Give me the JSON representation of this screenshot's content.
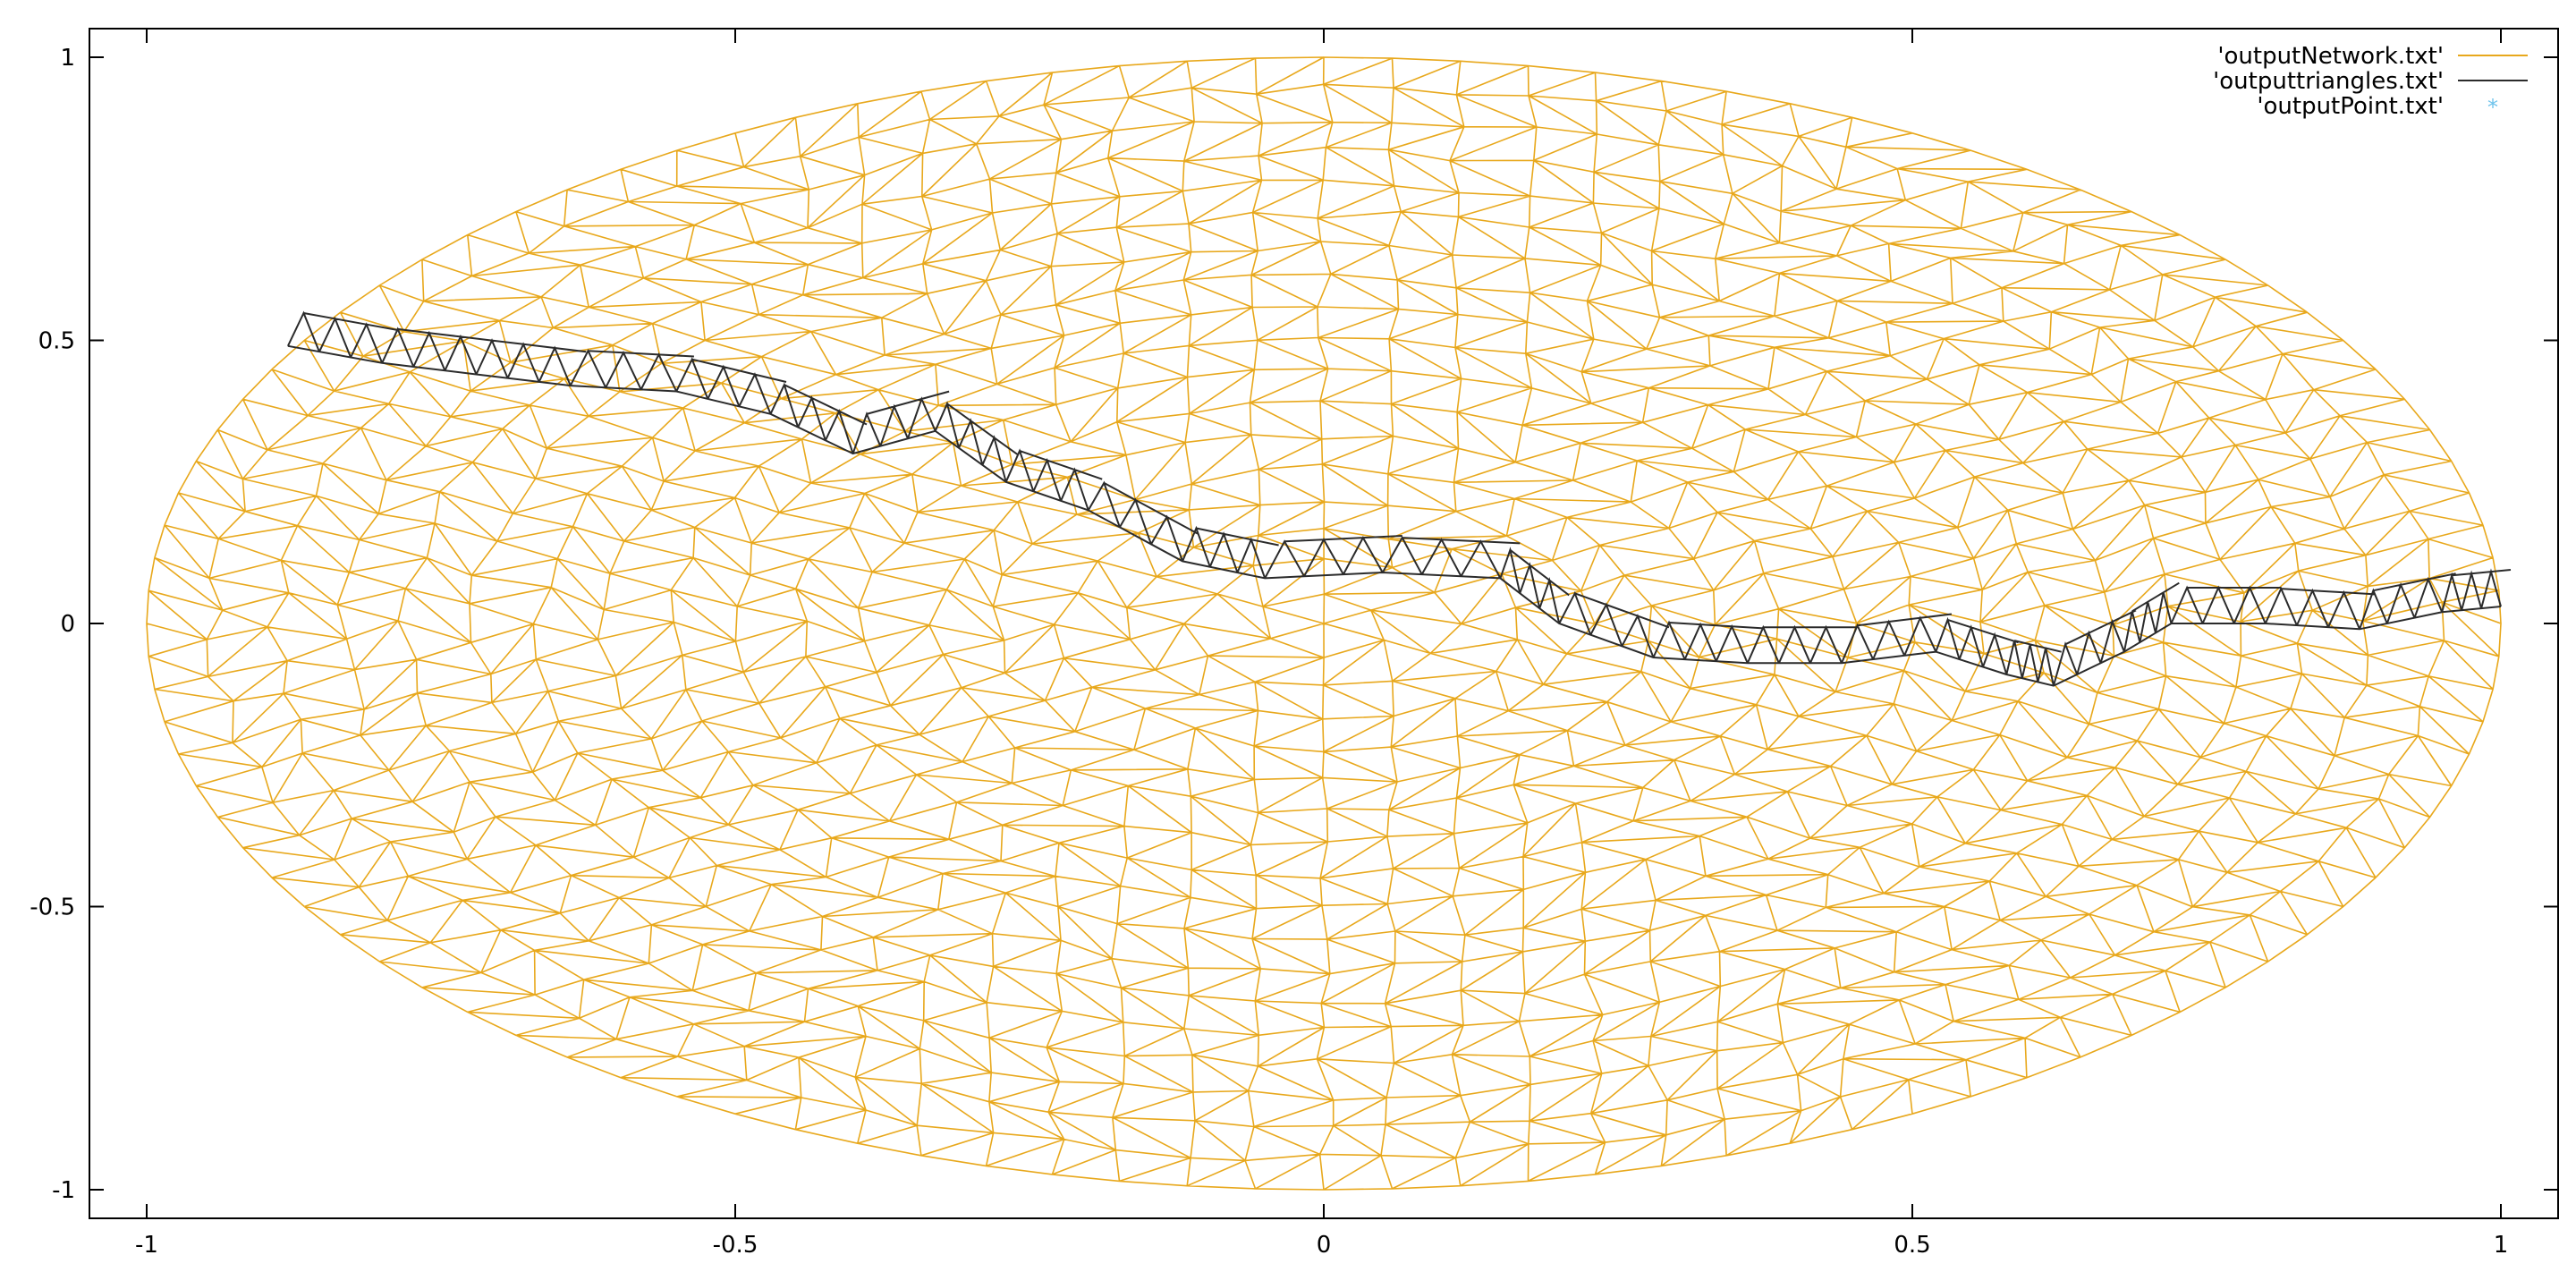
{
  "chart_data": {
    "type": "mesh",
    "x_ticks": [
      "-1",
      "-0.5",
      "0",
      "0.5",
      "1"
    ],
    "y_ticks": [
      "1",
      "0.5",
      "0",
      "-0.5",
      "-1"
    ],
    "xlim": [
      -1.05,
      1.05
    ],
    "ylim": [
      -1.05,
      1.05
    ],
    "grid": false,
    "legend_position": "top-right",
    "domain": {
      "shape": "disk",
      "center": [
        0,
        0
      ],
      "radius": 1
    },
    "series": [
      {
        "name": "'outputNetwork.txt'",
        "style": "lines",
        "color": "#e8a81c"
      },
      {
        "name": "'outputtriangles.txt'",
        "style": "lines",
        "color": "#2b2b2b",
        "path_x": [
          -0.88,
          -0.8,
          -0.72,
          -0.64,
          -0.55,
          -0.47,
          -0.4,
          -0.33,
          -0.27,
          -0.2,
          -0.12,
          -0.05,
          0.05,
          0.15,
          0.2,
          0.28,
          0.36,
          0.44,
          0.52,
          0.58,
          0.62,
          0.68,
          0.72,
          0.8,
          0.88,
          0.95,
          1.0
        ],
        "path_y": [
          0.49,
          0.46,
          0.44,
          0.42,
          0.41,
          0.37,
          0.3,
          0.34,
          0.25,
          0.2,
          0.11,
          0.08,
          0.09,
          0.08,
          0.0,
          -0.06,
          -0.07,
          -0.07,
          -0.05,
          -0.09,
          -0.11,
          -0.05,
          0.0,
          0.0,
          -0.01,
          0.02,
          0.03
        ]
      },
      {
        "name": "'outputPoint.txt'",
        "style": "points",
        "color": "#6ec3ec",
        "x": [],
        "y": []
      }
    ]
  }
}
